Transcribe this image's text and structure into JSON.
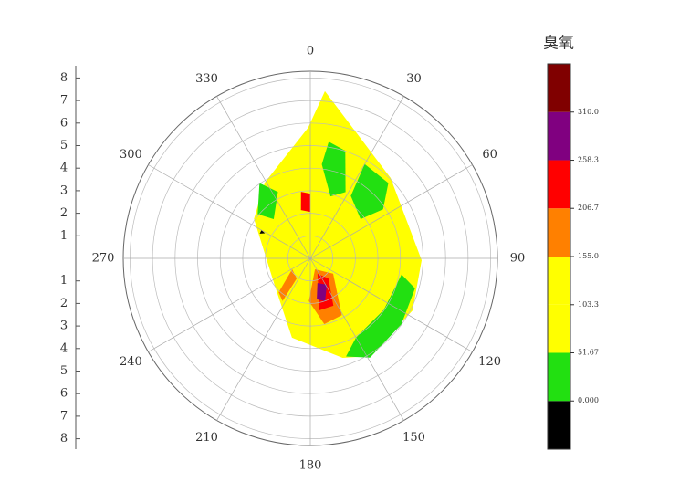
{
  "chart_data": {
    "type": "polar-contour",
    "colorbar": {
      "title": "臭氧",
      "ticks": [
        {
          "value": 0,
          "label": "0.000"
        },
        51.67,
        103.3,
        {
          "value": 155,
          "label": "155.0"
        },
        206.7,
        258.3,
        {
          "value": 310,
          "label": "310.0"
        }
      ],
      "colors": [
        "#000000",
        "#22e011",
        "#ffff00",
        "#ffff00",
        "#ff8000",
        "#ff0000",
        "#800080",
        "#800000"
      ],
      "clim": [
        -51.67,
        361.67
      ]
    },
    "rlim": [
      0,
      8.3
    ],
    "rticks": [
      1,
      2,
      3,
      4,
      5,
      6,
      7,
      8
    ],
    "thetaticks": [
      0,
      30,
      60,
      90,
      120,
      150,
      180,
      210,
      240,
      270,
      300,
      330
    ],
    "regions": [
      {
        "value": 100,
        "points": [
          [
            5,
            7.44
          ],
          [
            45,
            5.04
          ],
          [
            91,
            4.94
          ],
          [
            117,
            5.09
          ],
          [
            149,
            5.07
          ],
          [
            162,
            4.64
          ],
          [
            193,
            3.61
          ],
          [
            236,
            1.95
          ],
          [
            305,
            3.05
          ],
          [
            329,
            3.92
          ],
          [
            359,
            5.79
          ]
        ]
      },
      {
        "value": 30,
        "points": [
          [
            30,
            4.83
          ],
          [
            46,
            4.81
          ],
          [
            56,
            3.89
          ],
          [
            52,
            2.83
          ],
          [
            33,
            3.3
          ]
        ]
      },
      {
        "value": 30,
        "points": [
          [
            9,
            5.24
          ],
          [
            18,
            5.02
          ],
          [
            28,
            3.33
          ],
          [
            18,
            2.89
          ],
          [
            7,
            4.2
          ]
        ]
      },
      {
        "value": 30,
        "points": [
          [
            160,
            4.63
          ],
          [
            149,
            5.14
          ],
          [
            126,
            4.99
          ],
          [
            106,
            4.83
          ],
          [
            100,
            4.11
          ],
          [
            125,
            3.98
          ],
          [
            150,
            4.06
          ]
        ]
      },
      {
        "value": 30,
        "points": [
          [
            326,
            4.03
          ],
          [
            334,
            3.28
          ],
          [
            317,
            2.38
          ],
          [
            310,
            3.05
          ]
        ]
      },
      {
        "value": 180,
        "points": [
          [
            157,
            0.53
          ],
          [
            124,
            1.22
          ],
          [
            151,
            2.88
          ],
          [
            168,
            2.98
          ],
          [
            182,
            1.9
          ]
        ]
      },
      {
        "value": 180,
        "points": [
          [
            223,
            2.06
          ],
          [
            239,
            0.94
          ],
          [
            214,
            1.08
          ],
          [
            213,
            2.26
          ]
        ]
      },
      {
        "value": 230,
        "points": [
          [
            155,
            0.76
          ],
          [
            138,
            1.2
          ],
          [
            154,
            2.34
          ],
          [
            170,
            2.34
          ]
        ]
      },
      {
        "value": 230,
        "points": [
          [
            352,
            2.98
          ],
          [
            0,
            2.87
          ],
          [
            0,
            2.06
          ],
          [
            349,
            2.18
          ]
        ]
      },
      {
        "value": 280,
        "points": [
          [
            164,
            1.14
          ],
          [
            148,
            1.38
          ],
          [
            161,
            2.01
          ],
          [
            171,
            1.84
          ]
        ]
      },
      {
        "value": -10,
        "points": [
          [
            296,
            2.5
          ],
          [
            300,
            2.5
          ],
          [
            299,
            2.3
          ]
        ]
      }
    ]
  }
}
